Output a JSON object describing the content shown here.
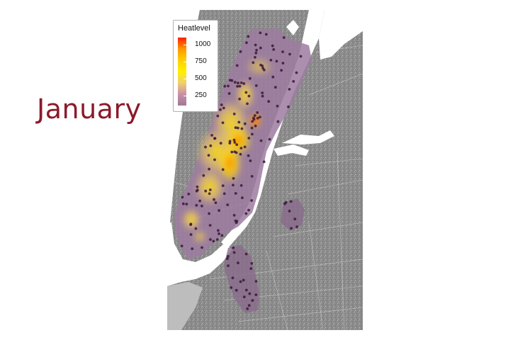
{
  "slide": {
    "title": "January"
  },
  "legend": {
    "title": "Heatlevel",
    "ticks": [
      {
        "label": "1000",
        "value": 1000
      },
      {
        "label": "750",
        "value": 750
      },
      {
        "label": "500",
        "value": 500
      },
      {
        "label": "250",
        "value": 250
      }
    ],
    "min": 100,
    "max": 1100,
    "colors": [
      "#a07898",
      "#c890a8",
      "#f0d070",
      "#fff000",
      "#ffd000",
      "#ff9800",
      "#ff2000"
    ]
  },
  "map": {
    "land_color": "#8a8a8a",
    "water_color": "#ffffff",
    "heat_base_color": "#9d7ba0",
    "station_color": "#3a1838"
  }
}
